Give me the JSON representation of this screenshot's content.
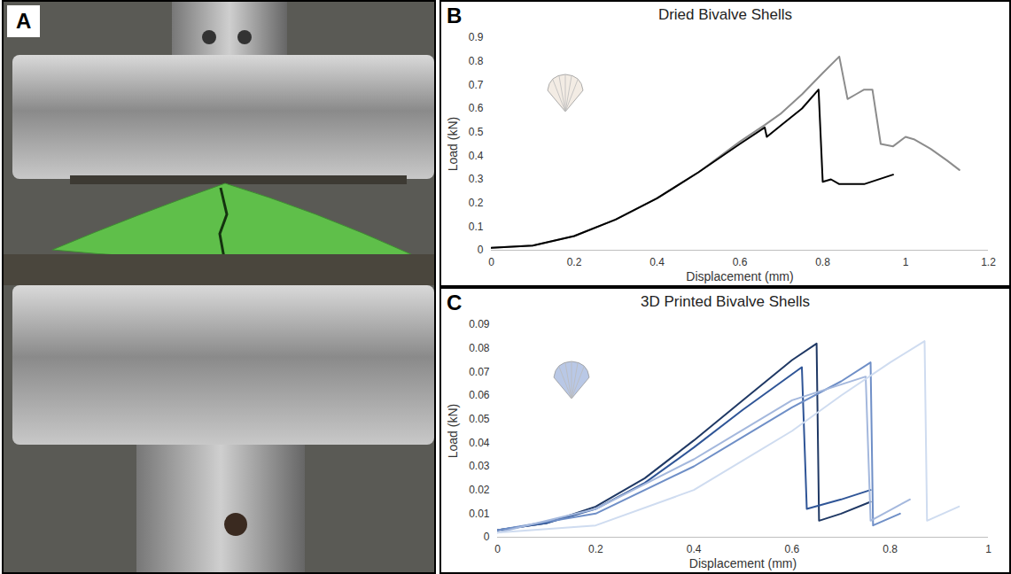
{
  "photo_panel": {
    "panel": "A"
  },
  "chart_data": [
    {
      "type": "line",
      "panel": "B",
      "title": "Dried Bivalve Shells",
      "x_label": "Displacement (mm)",
      "y_label": "Load (kN)",
      "xlim": [
        0,
        1.2
      ],
      "xticks": [
        0,
        0.2,
        0.4,
        0.6,
        0.8,
        1,
        1.2
      ],
      "ylim": [
        0,
        0.9
      ],
      "yticks": [
        0,
        0.1,
        0.2,
        0.3,
        0.4,
        0.5,
        0.6,
        0.7,
        0.8,
        0.9
      ],
      "grid": false,
      "series": [
        {
          "color": "#8c8c8c",
          "x": [
            0,
            0.1,
            0.2,
            0.3,
            0.4,
            0.5,
            0.6,
            0.66,
            0.7,
            0.75,
            0.8,
            0.84,
            0.86,
            0.88,
            0.9,
            0.92,
            0.94,
            0.97,
            1.0,
            1.02,
            1.06,
            1.1,
            1.13
          ],
          "values": [
            0.01,
            0.02,
            0.06,
            0.13,
            0.22,
            0.33,
            0.46,
            0.53,
            0.58,
            0.66,
            0.75,
            0.82,
            0.64,
            0.66,
            0.68,
            0.68,
            0.45,
            0.44,
            0.48,
            0.47,
            0.43,
            0.38,
            0.34
          ]
        },
        {
          "color": "#000000",
          "x": [
            0,
            0.1,
            0.2,
            0.3,
            0.4,
            0.5,
            0.6,
            0.66,
            0.665,
            0.7,
            0.75,
            0.79,
            0.8,
            0.82,
            0.84,
            0.9,
            0.97
          ],
          "values": [
            0.01,
            0.02,
            0.06,
            0.13,
            0.22,
            0.33,
            0.45,
            0.52,
            0.48,
            0.53,
            0.6,
            0.68,
            0.29,
            0.3,
            0.28,
            0.28,
            0.32
          ]
        }
      ]
    },
    {
      "type": "line",
      "panel": "C",
      "title": "3D Printed Bivalve Shells",
      "x_label": "Displacement (mm)",
      "y_label": "Load (kN)",
      "xlim": [
        0,
        1
      ],
      "xticks": [
        0,
        0.2,
        0.4,
        0.6,
        0.8,
        1
      ],
      "ylim": [
        0,
        0.09
      ],
      "yticks": [
        0,
        0.01,
        0.02,
        0.03,
        0.04,
        0.05,
        0.06,
        0.07,
        0.08,
        0.09
      ],
      "grid": false,
      "series": [
        {
          "color": "#1f3864",
          "x": [
            0,
            0.1,
            0.2,
            0.3,
            0.4,
            0.5,
            0.6,
            0.65,
            0.655,
            0.7,
            0.76
          ],
          "values": [
            0.003,
            0.006,
            0.013,
            0.025,
            0.041,
            0.058,
            0.075,
            0.082,
            0.007,
            0.01,
            0.015
          ]
        },
        {
          "color": "#2f5597",
          "x": [
            0,
            0.1,
            0.2,
            0.3,
            0.4,
            0.5,
            0.6,
            0.62,
            0.63,
            0.7,
            0.76
          ],
          "values": [
            0.003,
            0.006,
            0.012,
            0.023,
            0.038,
            0.054,
            0.069,
            0.072,
            0.012,
            0.016,
            0.02
          ]
        },
        {
          "color": "#6f8fc7",
          "x": [
            0,
            0.2,
            0.4,
            0.6,
            0.7,
            0.76,
            0.765,
            0.82
          ],
          "values": [
            0.003,
            0.01,
            0.03,
            0.055,
            0.066,
            0.074,
            0.005,
            0.01
          ]
        },
        {
          "color": "#a4b8dd",
          "x": [
            0,
            0.2,
            0.4,
            0.6,
            0.75,
            0.76,
            0.84
          ],
          "values": [
            0.002,
            0.012,
            0.033,
            0.058,
            0.068,
            0.007,
            0.016
          ]
        },
        {
          "color": "#cfdcf0",
          "x": [
            0,
            0.2,
            0.4,
            0.6,
            0.7,
            0.8,
            0.87,
            0.875,
            0.94
          ],
          "values": [
            0.002,
            0.005,
            0.02,
            0.045,
            0.06,
            0.074,
            0.083,
            0.007,
            0.013
          ]
        }
      ]
    }
  ]
}
